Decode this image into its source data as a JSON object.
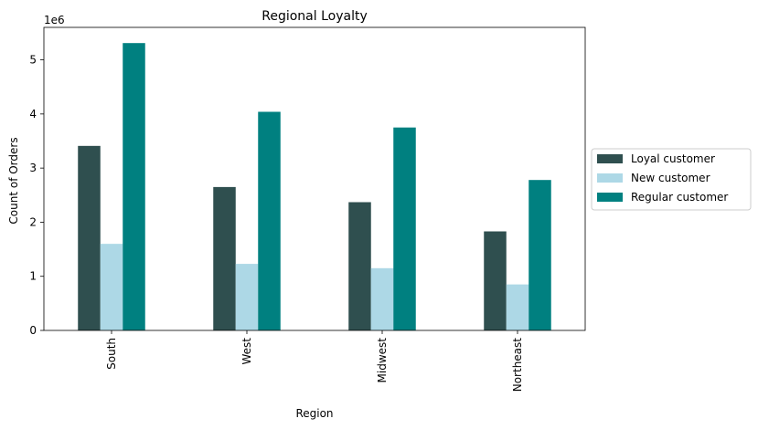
{
  "chart_data": {
    "type": "bar",
    "title": "Regional Loyalty",
    "xlabel": "Region",
    "ylabel": "Count of Orders",
    "y_scale_label": "1e6",
    "categories": [
      "South",
      "West",
      "Midwest",
      "Northeast"
    ],
    "series": [
      {
        "name": "Loyal customer",
        "color": "#2f4f4f",
        "values": [
          3.41,
          2.65,
          2.37,
          1.83
        ]
      },
      {
        "name": "New customer",
        "color": "#add8e6",
        "values": [
          1.6,
          1.23,
          1.15,
          0.85
        ]
      },
      {
        "name": "Regular customer",
        "color": "#008080",
        "values": [
          5.31,
          4.04,
          3.75,
          2.78
        ]
      }
    ],
    "ylim": [
      0,
      5.6
    ],
    "yticks": [
      0,
      1,
      2,
      3,
      4,
      5
    ],
    "ytick_labels": [
      "0",
      "1",
      "2",
      "3",
      "4",
      "5"
    ],
    "grid": false,
    "legend_position": "right"
  }
}
